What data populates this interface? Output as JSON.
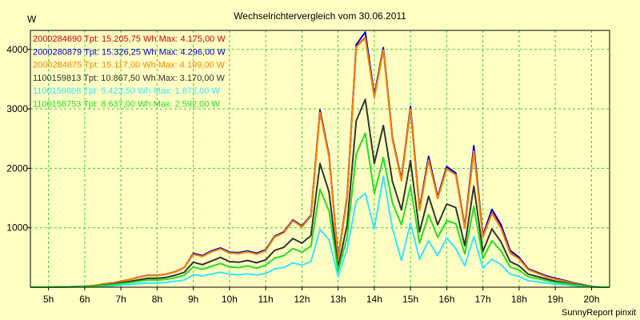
{
  "chart_data": {
    "type": "line",
    "title": "Wechselrichtervergleich vom 30.06.2011",
    "ylabel": "W",
    "xlabel": "",
    "credit": "SunnyReport pinxit",
    "x_range": [
      4.5,
      20.5
    ],
    "ylim": [
      0,
      4320
    ],
    "x_ticks": [
      5,
      6,
      7,
      8,
      9,
      10,
      11,
      12,
      13,
      14,
      15,
      16,
      17,
      18,
      19,
      20
    ],
    "x_tick_labels": [
      "5h",
      "6h",
      "7h",
      "8h",
      "9h",
      "10h",
      "11h",
      "12h",
      "13h",
      "14h",
      "15h",
      "16h",
      "17h",
      "18h",
      "19h",
      "20h"
    ],
    "y_ticks": [
      1000,
      2000,
      3000,
      4000
    ],
    "y_tick_labels": [
      "1000",
      "2000",
      "3000",
      "4000"
    ],
    "grid": true,
    "legend_position": "top-left",
    "x": [
      4.5,
      5.0,
      5.5,
      6.0,
      6.25,
      6.5,
      6.75,
      7.0,
      7.25,
      7.5,
      7.75,
      8.0,
      8.25,
      8.5,
      8.75,
      9.0,
      9.25,
      9.5,
      9.75,
      10.0,
      10.25,
      10.5,
      10.75,
      11.0,
      11.25,
      11.5,
      11.75,
      12.0,
      12.25,
      12.5,
      12.75,
      13.0,
      13.25,
      13.5,
      13.75,
      14.0,
      14.25,
      14.5,
      14.75,
      15.0,
      15.25,
      15.5,
      15.75,
      16.0,
      16.25,
      16.5,
      16.75,
      17.0,
      17.25,
      17.5,
      17.75,
      18.0,
      18.25,
      18.5,
      18.75,
      19.0,
      19.25,
      19.5,
      19.75,
      20.0,
      20.25,
      20.5
    ],
    "series": [
      {
        "name": "2000284690 Tpt: 15.205,75 Wh Max: 4.175,00 W",
        "color": "#CC0000",
        "values": [
          0,
          0,
          5,
          15,
          25,
          50,
          70,
          100,
          130,
          170,
          200,
          200,
          220,
          260,
          330,
          560,
          520,
          600,
          650,
          580,
          570,
          600,
          560,
          620,
          850,
          920,
          1120,
          1020,
          1200,
          2950,
          2200,
          480,
          1500,
          4050,
          4200,
          3200,
          4000,
          2500,
          1800,
          3000,
          1300,
          2150,
          1500,
          2000,
          1900,
          1000,
          2300,
          850,
          1250,
          1000,
          580,
          480,
          300,
          240,
          180,
          140,
          110,
          70,
          40,
          10,
          0,
          0
        ]
      },
      {
        "name": "2000280879 Tpt: 15.326,25 Wh Max: 4.296,00 W",
        "color": "#0000CC",
        "values": [
          0,
          0,
          5,
          15,
          25,
          50,
          70,
          100,
          130,
          170,
          200,
          200,
          220,
          260,
          330,
          570,
          530,
          610,
          660,
          590,
          580,
          610,
          570,
          630,
          860,
          930,
          1130,
          1030,
          1210,
          2980,
          2220,
          490,
          1520,
          4080,
          4290,
          3230,
          4030,
          2520,
          1820,
          3040,
          1320,
          2200,
          1520,
          2030,
          1920,
          1020,
          2380,
          870,
          1310,
          1050,
          620,
          500,
          310,
          250,
          190,
          150,
          115,
          75,
          45,
          12,
          0,
          0
        ]
      },
      {
        "name": "2000284675 Tpt: 15.117,00 Wh Max: 4.199,00 W",
        "color": "#FF8000",
        "values": [
          0,
          0,
          5,
          15,
          25,
          48,
          68,
          98,
          128,
          168,
          198,
          198,
          218,
          258,
          328,
          555,
          515,
          595,
          645,
          575,
          565,
          595,
          555,
          615,
          845,
          915,
          1115,
          1015,
          1195,
          2940,
          2190,
          470,
          1490,
          4040,
          4190,
          3190,
          3990,
          2490,
          1790,
          2990,
          1290,
          2140,
          1490,
          1990,
          1890,
          990,
          2290,
          840,
          1240,
          990,
          575,
          475,
          295,
          235,
          175,
          135,
          105,
          68,
          38,
          9,
          0,
          0
        ]
      },
      {
        "name": "1100159813 Tpt: 10.867,50 Wh Max: 3.170,00 W",
        "color": "#333333",
        "values": [
          0,
          0,
          4,
          10,
          18,
          35,
          50,
          75,
          95,
          125,
          150,
          150,
          165,
          200,
          250,
          420,
          380,
          440,
          500,
          430,
          420,
          450,
          410,
          460,
          620,
          670,
          820,
          740,
          870,
          2080,
          1600,
          330,
          1050,
          2800,
          3160,
          2080,
          2720,
          1780,
          1300,
          2130,
          930,
          1530,
          1050,
          1400,
          1340,
          700,
          1700,
          600,
          980,
          760,
          430,
          360,
          220,
          180,
          140,
          100,
          80,
          50,
          30,
          8,
          0,
          0
        ]
      },
      {
        "name": "1100159808 Tpt: 5.423,50 Wh Max: 1.872,00 W",
        "color": "#33E5FF",
        "values": [
          0,
          0,
          2,
          5,
          8,
          15,
          22,
          35,
          45,
          60,
          70,
          70,
          80,
          100,
          120,
          210,
          190,
          220,
          250,
          220,
          210,
          225,
          205,
          230,
          310,
          330,
          410,
          370,
          430,
          970,
          800,
          180,
          640,
          1450,
          1580,
          980,
          1870,
          1000,
          450,
          1080,
          470,
          780,
          530,
          830,
          650,
          360,
          850,
          320,
          470,
          380,
          220,
          180,
          110,
          90,
          70,
          50,
          40,
          25,
          15,
          4,
          0,
          0
        ]
      },
      {
        "name": "1100158753 Tpt: 8.637,00 Wh Max: 2.592,00 W",
        "color": "#22DD22",
        "values": [
          0,
          0,
          3,
          8,
          14,
          28,
          40,
          60,
          75,
          100,
          120,
          120,
          130,
          160,
          200,
          340,
          300,
          350,
          400,
          340,
          330,
          360,
          320,
          370,
          490,
          530,
          650,
          590,
          690,
          1650,
          1280,
          270,
          840,
          2240,
          2590,
          1580,
          2180,
          1420,
          1050,
          1700,
          740,
          1220,
          840,
          1120,
          1070,
          560,
          1360,
          480,
          780,
          610,
          340,
          290,
          175,
          145,
          110,
          80,
          65,
          40,
          24,
          6,
          0,
          0
        ]
      }
    ]
  }
}
